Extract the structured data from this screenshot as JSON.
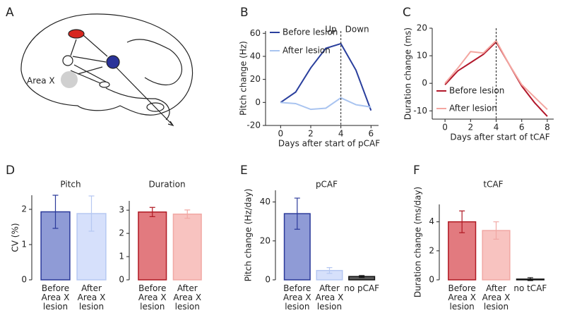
{
  "diagram": {
    "panel": "A",
    "labels": [
      "Area X"
    ]
  },
  "chart_data": [
    {
      "panel": "B",
      "type": "line",
      "xlabel": "Days after start of pCAF",
      "ylabel": "Pitch change (Hz)",
      "x": [
        0,
        1,
        2,
        3,
        4,
        5,
        6
      ],
      "xlim": [
        -1,
        6.5
      ],
      "xticks": [
        0,
        2,
        4,
        6
      ],
      "ylim": [
        -20,
        62
      ],
      "yticks": [
        -20,
        0,
        20,
        40,
        60
      ],
      "vline": 4,
      "annotations": [
        "Up",
        "Down"
      ],
      "legend": "upper left",
      "series": [
        {
          "name": "Before lesion",
          "color": "#2a3f9d",
          "values": [
            0,
            9,
            30,
            47,
            51,
            28,
            -7
          ]
        },
        {
          "name": "After lesion",
          "color": "#a9c4f0",
          "values": [
            0,
            -1,
            -6,
            -5,
            4,
            -2,
            -4
          ]
        }
      ]
    },
    {
      "panel": "C",
      "type": "line",
      "xlabel": "Days after start of tCAF",
      "ylabel": "Duration change (ms)",
      "x": [
        0,
        1,
        2,
        3,
        4,
        5,
        6,
        7,
        8
      ],
      "xlim": [
        -1,
        8.5
      ],
      "xticks": [
        0,
        2,
        4,
        6,
        8
      ],
      "ylim": [
        -13,
        20
      ],
      "yticks": [
        -10,
        0,
        10,
        20
      ],
      "vline": 4,
      "legend": "lower left",
      "series": [
        {
          "name": "Before lesion",
          "color": "#b2182b",
          "values": [
            -0.5,
            4.5,
            7.5,
            10.5,
            15,
            7,
            -1,
            -7,
            -12
          ]
        },
        {
          "name": "After lesion",
          "color": "#f4a6a0",
          "values": [
            0,
            5.5,
            11.5,
            11,
            15.5,
            7,
            -0.5,
            -5,
            -9.5
          ]
        }
      ]
    },
    {
      "panel": "D",
      "type": "bar",
      "title": "Pitch",
      "ylabel": "CV (%)",
      "categories": [
        "Before Area X lesion",
        "After Area X lesion"
      ],
      "values": [
        1.93,
        1.88
      ],
      "errors": [
        0.47,
        0.5
      ],
      "colors": [
        "#8f9bd6",
        "#d6e0fb"
      ],
      "edge_colors": [
        "#2b3a9a",
        "#b6c8f2"
      ],
      "ylim": [
        0,
        2.4
      ],
      "yticks": [
        0,
        1,
        2
      ]
    },
    {
      "type": "bar",
      "title": "Duration",
      "categories": [
        "Before Area X lesion",
        "After Area X lesion"
      ],
      "values": [
        2.92,
        2.83
      ],
      "errors": [
        0.2,
        0.18
      ],
      "colors": [
        "#e27a7f",
        "#f8c3c0"
      ],
      "edge_colors": [
        "#b01a24",
        "#f1a8a4"
      ],
      "ylim": [
        0,
        3.4
      ],
      "yticks": [
        0,
        1,
        2,
        3
      ]
    },
    {
      "panel": "E",
      "type": "bar",
      "title": "pCAF",
      "ylabel": "Pitch change (Hz/day)",
      "categories": [
        "Before Area X lesion",
        "After Area X lesion",
        "no pCAF"
      ],
      "values": [
        34,
        4.8,
        1.7
      ],
      "errors": [
        8,
        1.5,
        0.5
      ],
      "colors": [
        "#8f9bd6",
        "#d6e0fb",
        "#5a5a5a"
      ],
      "edge_colors": [
        "#2b3a9a",
        "#b6c8f2",
        "#111111"
      ],
      "ylim": [
        0,
        46
      ],
      "yticks": [
        0,
        20,
        40
      ]
    },
    {
      "panel": "F",
      "type": "bar",
      "title": "tCAF",
      "ylabel": "Duration change (ms/day)",
      "categories": [
        "Before Area X lesion",
        "After Area X lesion",
        "no tCAF"
      ],
      "values": [
        4.0,
        3.4,
        0.05
      ],
      "errors": [
        0.75,
        0.6,
        0.1
      ],
      "colors": [
        "#e27a7f",
        "#f8c3c0",
        "#5a5a5a"
      ],
      "edge_colors": [
        "#b01a24",
        "#f1a8a4",
        "#111111"
      ],
      "ylim": [
        0,
        5.2
      ],
      "yticks": [
        0,
        2,
        4
      ]
    }
  ]
}
